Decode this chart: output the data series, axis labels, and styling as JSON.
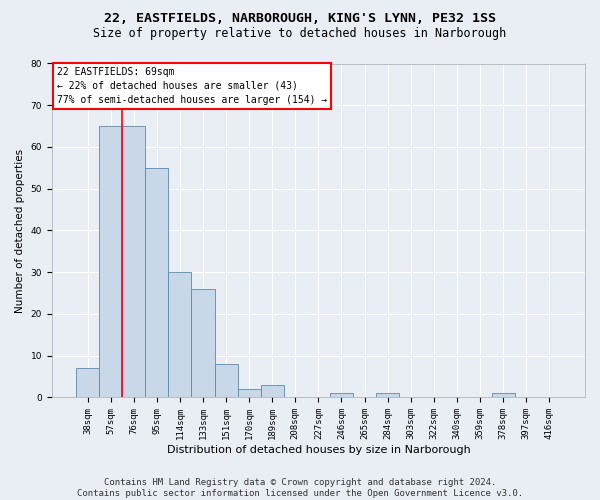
{
  "title1": "22, EASTFIELDS, NARBOROUGH, KING'S LYNN, PE32 1SS",
  "title2": "Size of property relative to detached houses in Narborough",
  "xlabel": "Distribution of detached houses by size in Narborough",
  "ylabel": "Number of detached properties",
  "categories": [
    "38sqm",
    "57sqm",
    "76sqm",
    "95sqm",
    "114sqm",
    "133sqm",
    "151sqm",
    "170sqm",
    "189sqm",
    "208sqm",
    "227sqm",
    "246sqm",
    "265sqm",
    "284sqm",
    "303sqm",
    "322sqm",
    "340sqm",
    "359sqm",
    "378sqm",
    "397sqm",
    "416sqm"
  ],
  "values": [
    7,
    65,
    65,
    55,
    30,
    26,
    8,
    2,
    3,
    0,
    0,
    1,
    0,
    1,
    0,
    0,
    0,
    0,
    1,
    0,
    0
  ],
  "bar_color": "#c8d8e8",
  "bar_edge_color": "#5a8ab0",
  "bar_edge_width": 0.6,
  "background_color": "#e8eef4",
  "grid_color": "#ffffff",
  "red_line_x": 1.5,
  "annotation_text_line1": "22 EASTFIELDS: 69sqm",
  "annotation_text_line2": "← 22% of detached houses are smaller (43)",
  "annotation_text_line3": "77% of semi-detached houses are larger (154) →",
  "annotation_fontsize": 7,
  "ylim": [
    0,
    80
  ],
  "yticks": [
    0,
    10,
    20,
    30,
    40,
    50,
    60,
    70,
    80
  ],
  "footer1": "Contains HM Land Registry data © Crown copyright and database right 2024.",
  "footer2": "Contains public sector information licensed under the Open Government Licence v3.0.",
  "title1_fontsize": 9.5,
  "title2_fontsize": 8.5,
  "xlabel_fontsize": 8,
  "ylabel_fontsize": 7.5,
  "tick_fontsize": 6.5,
  "footer_fontsize": 6.5
}
